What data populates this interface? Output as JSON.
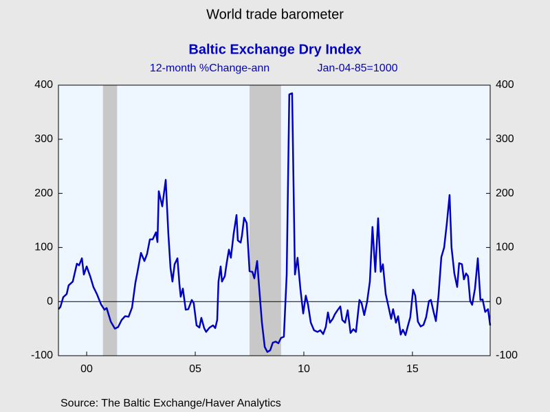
{
  "chart_data": {
    "type": "line",
    "title": "World trade barometer",
    "subtitle": "Baltic Exchange Dry Index",
    "units": "12-month %Change-ann",
    "base": "Jan-04-85=1000",
    "source": "Source:  The Baltic Exchange/Haver Analytics",
    "color": "#0000c0",
    "shade_color": "#c8c8c8",
    "shaded_periods": [
      [
        2001.25,
        2001.9
      ],
      [
        2008.0,
        2009.45
      ]
    ],
    "x": [
      1999.2,
      1999.29,
      1999.42,
      1999.58,
      1999.67,
      1999.86,
      2000.05,
      2000.15,
      2000.28,
      2000.37,
      2000.5,
      2000.66,
      2000.81,
      2000.97,
      2001.16,
      2001.32,
      2001.42,
      2001.61,
      2001.8,
      2001.95,
      2002.11,
      2002.27,
      2002.43,
      2002.59,
      2002.74,
      2002.84,
      2003.0,
      2003.16,
      2003.28,
      2003.41,
      2003.54,
      2003.69,
      2003.76,
      2003.82,
      2003.98,
      2004.14,
      2004.26,
      2004.36,
      2004.45,
      2004.55,
      2004.68,
      2004.77,
      2004.83,
      2004.93,
      2005.06,
      2005.18,
      2005.34,
      2005.43,
      2005.56,
      2005.69,
      2005.78,
      2005.91,
      2006.0,
      2006.16,
      2006.32,
      2006.42,
      2006.51,
      2006.57,
      2006.67,
      2006.73,
      2006.86,
      2006.95,
      2007.05,
      2007.14,
      2007.27,
      2007.4,
      2007.46,
      2007.59,
      2007.65,
      2007.75,
      2007.87,
      2008.0,
      2008.13,
      2008.22,
      2008.35,
      2008.44,
      2008.57,
      2008.7,
      2008.82,
      2008.95,
      2009.07,
      2009.2,
      2009.33,
      2009.45,
      2009.58,
      2009.71,
      2009.83,
      2009.96,
      2010.09,
      2010.21,
      2010.34,
      2010.47,
      2010.59,
      2010.69,
      2010.82,
      2010.97,
      2011.13,
      2011.26,
      2011.39,
      2011.51,
      2011.61,
      2011.7,
      2011.83,
      2011.92,
      2012.05,
      2012.18,
      2012.27,
      2012.4,
      2012.52,
      2012.65,
      2012.78,
      2012.9,
      2013.06,
      2013.16,
      2013.28,
      2013.41,
      2013.54,
      2013.66,
      2013.79,
      2013.92,
      2014.04,
      2014.14,
      2014.27,
      2014.39,
      2014.52,
      2014.61,
      2014.74,
      2014.84,
      2014.96,
      2015.06,
      2015.18,
      2015.31,
      2015.4,
      2015.53,
      2015.63,
      2015.75,
      2015.88,
      2016.01,
      2016.13,
      2016.26,
      2016.35,
      2016.48,
      2016.58,
      2016.7,
      2016.83,
      2016.96,
      2017.08,
      2017.21,
      2017.3,
      2017.43,
      2017.56,
      2017.65,
      2017.78,
      2017.87,
      2017.97,
      2018.06,
      2018.16,
      2018.25,
      2018.38,
      2018.51,
      2018.63,
      2018.73,
      2018.85,
      2018.98,
      2019.08
    ],
    "values": [
      -14,
      -10,
      8,
      14,
      30,
      37,
      70,
      67,
      80,
      50,
      65,
      47,
      27,
      14,
      -5,
      -15,
      -12,
      -37,
      -50,
      -47,
      -34,
      -27,
      -28,
      -11,
      34,
      55,
      90,
      75,
      88,
      115,
      115,
      128,
      110,
      204,
      176,
      225,
      126,
      62,
      37,
      69,
      80,
      33,
      9,
      24,
      -15,
      -14,
      3,
      -3,
      -44,
      -48,
      -30,
      -49,
      -56,
      -48,
      -44,
      -49,
      -34,
      37,
      65,
      37,
      47,
      72,
      96,
      81,
      126,
      160,
      113,
      109,
      122,
      155,
      145,
      56,
      55,
      43,
      75,
      27,
      -39,
      -84,
      -93,
      -90,
      -76,
      -74,
      -77,
      -67,
      -65,
      50,
      383,
      385,
      50,
      81,
      24,
      -22,
      11,
      -5,
      -39,
      -53,
      -56,
      -53,
      -60,
      -47,
      -20,
      -39,
      -32,
      -24,
      -16,
      -9,
      -34,
      -39,
      -16,
      -58,
      -51,
      -56,
      3,
      -3,
      -25,
      -1,
      37,
      138,
      55,
      154,
      55,
      69,
      14,
      -8,
      -32,
      -14,
      -39,
      -27,
      -61,
      -52,
      -62,
      -42,
      -29,
      22,
      11,
      -37,
      -46,
      -43,
      -29,
      1,
      3,
      -20,
      -36,
      11,
      82,
      100,
      143,
      197,
      100,
      52,
      27,
      71,
      69,
      41,
      52,
      47,
      1,
      -6,
      24,
      80,
      3,
      4,
      -19,
      -14,
      -44
    ],
    "xlim": [
      1999.2,
      2019.08
    ],
    "xticks": [
      {
        "value": 2000.5,
        "label": "00"
      },
      {
        "value": 2005.5,
        "label": "05"
      },
      {
        "value": 2010.5,
        "label": "10"
      },
      {
        "value": 2015.5,
        "label": "15"
      }
    ],
    "ylim": [
      -100,
      400
    ],
    "yticks": [
      -100,
      0,
      100,
      200,
      300,
      400
    ],
    "zero_line": true
  }
}
